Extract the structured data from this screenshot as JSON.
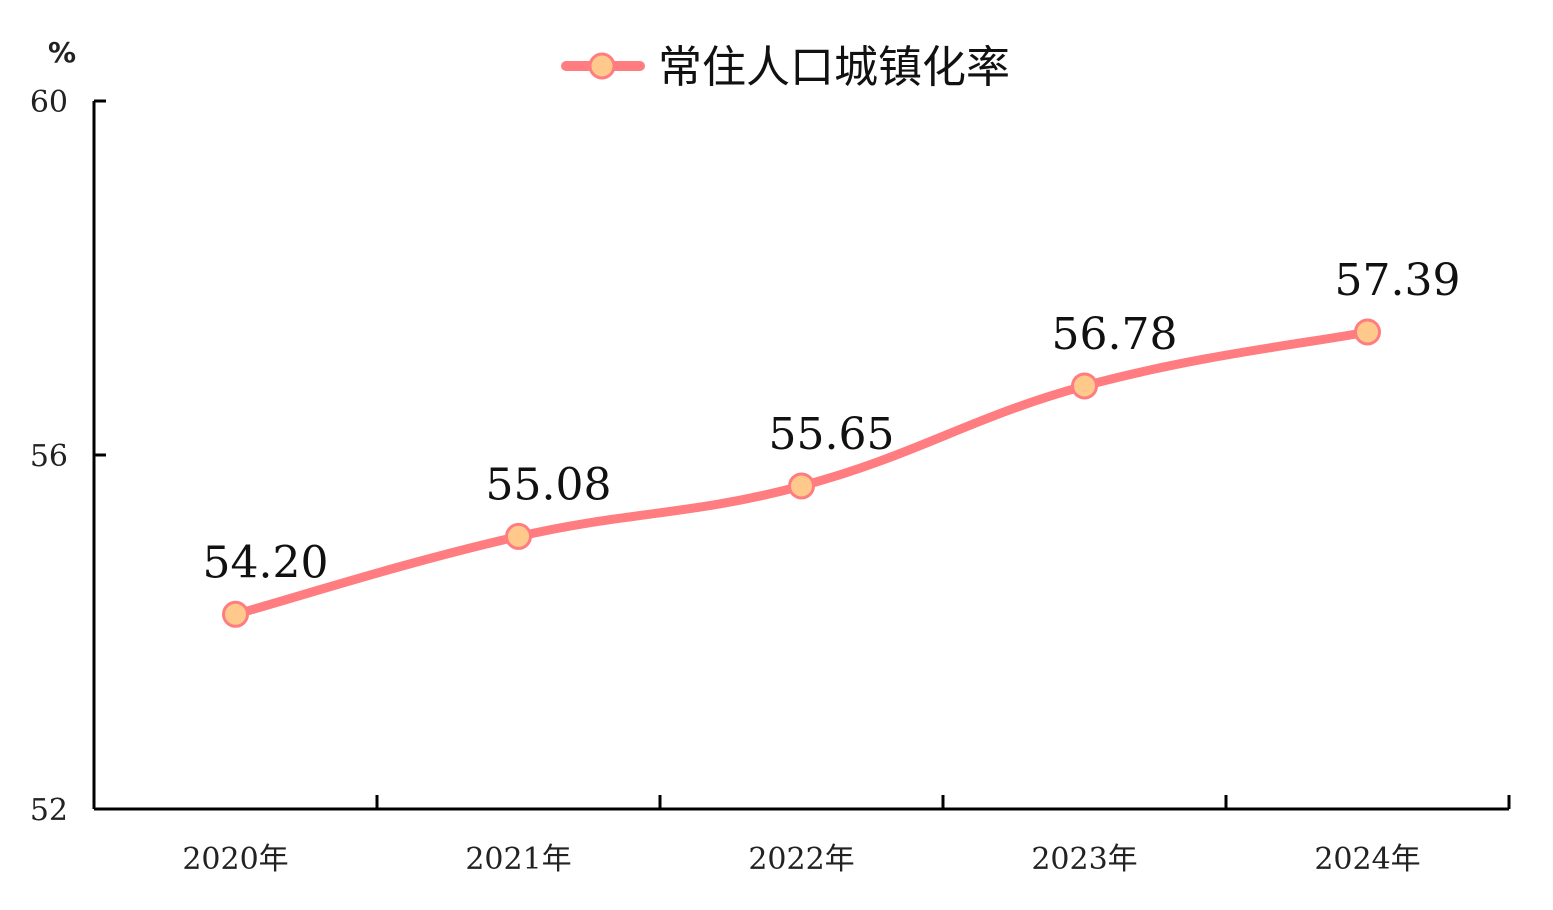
{
  "chart_data": {
    "type": "line",
    "title": "",
    "ylabel": "%",
    "xlabel": "",
    "categories": [
      "2020年",
      "2021年",
      "2022年",
      "2023年",
      "2024年"
    ],
    "series": [
      {
        "name": "常住人口城镇化率",
        "values": [
          54.2,
          55.08,
          55.65,
          56.78,
          57.39
        ],
        "labels": [
          "54.20",
          "55.08",
          "55.65",
          "56.78",
          "57.39"
        ]
      }
    ],
    "ylim": [
      52,
      60
    ],
    "yticks": [
      "52",
      "56",
      "60"
    ],
    "grid": false,
    "legend": "top-center",
    "smooth": true,
    "colors": {
      "line": "#ff7c80",
      "marker_fill": "#ffc98c"
    }
  }
}
